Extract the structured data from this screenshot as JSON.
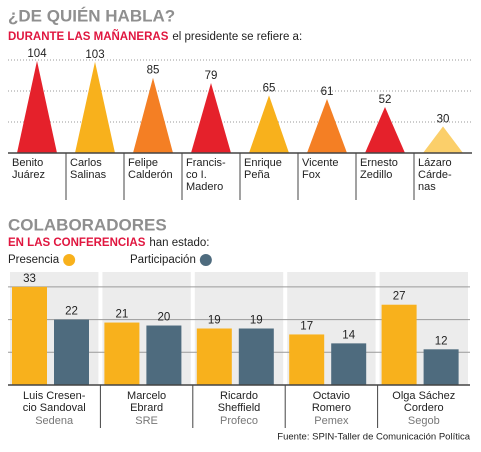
{
  "chart_data": [
    {
      "type": "triangle",
      "title": "¿DE QUIÉN HABLA?",
      "subtitle": [
        "DURANTE LAS MAÑANERAS",
        "el presidente se refiere a:"
      ],
      "categories": [
        [
          "Benito",
          "Juárez"
        ],
        [
          "Carlos",
          "Salinas"
        ],
        [
          "Felipe",
          "Calderón"
        ],
        [
          "Francis-",
          "co I.",
          "Madero"
        ],
        [
          "Enrique",
          "Peña"
        ],
        [
          "Vicente",
          "Fox"
        ],
        [
          "Ernesto",
          "Zedillo"
        ],
        [
          "Lázaro",
          "Cárde-",
          "nas"
        ]
      ],
      "values": [
        104,
        103,
        85,
        79,
        65,
        61,
        52,
        30
      ],
      "colors": [
        "#e5212b",
        "#f8b11c",
        "#f47f24",
        "#e5212b",
        "#f8b11c",
        "#f47f24",
        "#e5212b",
        "#fbcf6a"
      ],
      "ylim": [
        0,
        105
      ],
      "yticks": [
        35,
        70,
        105
      ],
      "grid": true
    },
    {
      "type": "grouped_bar",
      "title": "COLABORADORES",
      "subtitle": [
        "EN LAS CONFERENCIAS",
        "han estado:"
      ],
      "categories": [
        [
          "Luis Cresen-",
          "cio Sandoval"
        ],
        [
          "Marcelo",
          "Ebrard"
        ],
        [
          "Ricardo",
          "Sheffield"
        ],
        [
          "Octavio",
          "Romero"
        ],
        [
          "Olga Sáchez",
          "Cordero"
        ]
      ],
      "organizations": [
        "Sedena",
        "SRE",
        "Profeco",
        "Pemex",
        "Segob"
      ],
      "series": [
        {
          "name": "Presencia",
          "color": "#f8b11c",
          "values": [
            33,
            21,
            19,
            17,
            27
          ]
        },
        {
          "name": "Participación",
          "color": "#4e6b7e",
          "values": [
            22,
            20,
            19,
            14,
            12
          ]
        }
      ],
      "ylim": [
        0,
        38
      ],
      "yticks": [
        11,
        22,
        33
      ],
      "grid": true,
      "source": "Fuente: SPIN-Taller de Comunicación Política"
    }
  ]
}
